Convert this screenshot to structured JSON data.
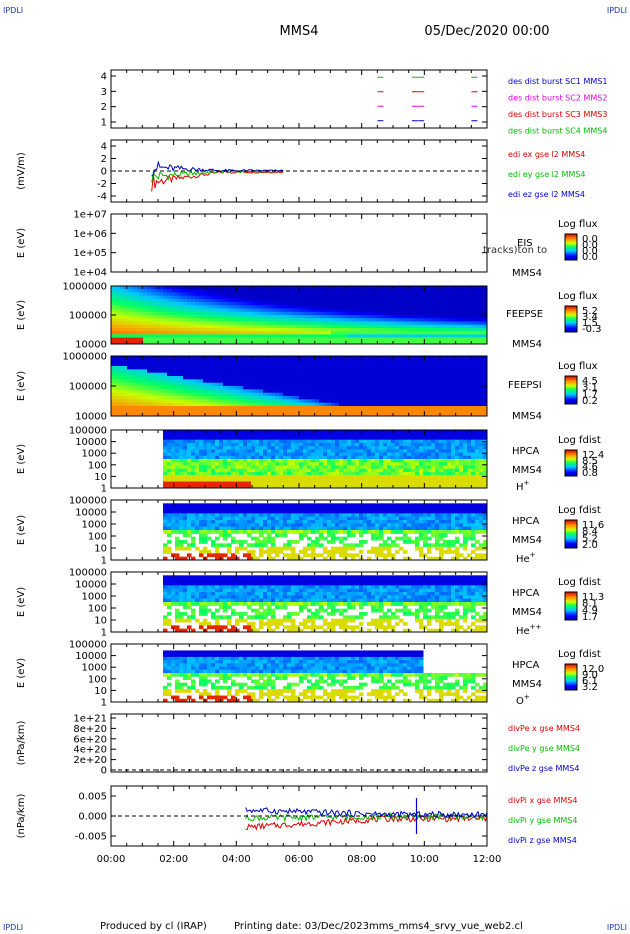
{
  "header": {
    "corner_label": "IPDLI",
    "spacecraft": "MMS4",
    "datetime": "05/Dec/2020 00:00"
  },
  "footer": {
    "produced_by": "Produced by cl (IRAP)",
    "printing_date": "Printing date: 03/Dec/2023",
    "script_name": "mms_mms4_srvy_vue_web2.cl"
  },
  "colors": {
    "red": "#dd0000",
    "green": "#00bb00",
    "blue": "#0000cc",
    "magenta": "#dd00dd",
    "axis": "#000000"
  },
  "chart_data": {
    "type": "multi-panel time series and spectrograms",
    "x_ticks": [
      "00:00",
      "02:00",
      "04:00",
      "06:00",
      "08:00",
      "10:00",
      "12:00"
    ],
    "x_range_hours": [
      0,
      12
    ],
    "panels": [
      {
        "id": "burst",
        "type": "line",
        "ylabel": "",
        "yticks": [
          "4",
          "3",
          "2",
          "1"
        ],
        "ylim": [
          0.5,
          4.5
        ],
        "legend": [
          {
            "text": "des dist burst SC1 MMS1",
            "color": "blue"
          },
          {
            "text": "des dist burst SC2 MMS2",
            "color": "magenta"
          },
          {
            "text": "des dist burst SC3 MMS3",
            "color": "red"
          },
          {
            "text": "des dist burst SC4 MMS4",
            "color": "green"
          }
        ],
        "marks_hours": [
          8.6,
          9.7,
          9.9,
          11.6
        ]
      },
      {
        "id": "edi",
        "type": "line",
        "ylabel": "(mV/m)",
        "yticks": [
          "4",
          "2",
          "0",
          "-2",
          "-4"
        ],
        "ylim": [
          -5,
          5
        ],
        "dashed_zero": true,
        "legend": [
          {
            "text": "edi ex gse l2 MMS4",
            "color": "red"
          },
          {
            "text": "edi ey gse l2 MMS4",
            "color": "green"
          },
          {
            "text": "edi ez gse l2 MMS4",
            "color": "blue"
          }
        ]
      },
      {
        "id": "eis",
        "type": "heatmap",
        "ylabel": "E (eV)",
        "yticks": [
          "1e+07",
          "1e+06",
          "1e+05",
          "1e+04"
        ],
        "ylim_log": [
          4,
          7
        ],
        "instrument": "EIS",
        "clipped_label": "tracks)ton to",
        "species": "MMS4",
        "cbar_title": "Log flux",
        "cbar_ticks": [
          "0.0",
          "0.0",
          "0.0",
          "0.0"
        ],
        "empty": true
      },
      {
        "id": "feepse",
        "type": "heatmap",
        "ylabel": "E (eV)",
        "yticks": [
          "1000000",
          "100000",
          "10000"
        ],
        "ylim_log": [
          4,
          6
        ],
        "instrument": "FEEPSE",
        "species": "MMS4",
        "cbar_title": "Log flux",
        "cbar_ticks": [
          "5.2",
          "3.4",
          "1.5",
          "-0.3"
        ]
      },
      {
        "id": "feepsi",
        "type": "heatmap",
        "ylabel": "E (eV)",
        "yticks": [
          "1000000",
          "100000",
          "10000"
        ],
        "ylim_log": [
          4,
          6
        ],
        "instrument": "FEEPSI",
        "species": "MMS4",
        "cbar_title": "Log flux",
        "cbar_ticks": [
          "4.5",
          "3.1",
          "1.7",
          "0.2"
        ]
      },
      {
        "id": "hpca_h",
        "type": "heatmap",
        "ylabel": "E (eV)",
        "yticks": [
          "100000",
          "10000",
          "1000",
          "100",
          "10",
          "1"
        ],
        "ylim_log": [
          0,
          5
        ],
        "instrument": "HPCA",
        "species": "MMS4",
        "ion": "H",
        "charge": "+",
        "cbar_title": "Log fdist",
        "cbar_ticks": [
          "12.4",
          "8.5",
          "4.6",
          "0.8"
        ]
      },
      {
        "id": "hpca_he",
        "type": "heatmap",
        "ylabel": "E (eV)",
        "yticks": [
          "100000",
          "10000",
          "1000",
          "100",
          "10",
          "1"
        ],
        "ylim_log": [
          0,
          5
        ],
        "instrument": "HPCA",
        "species": "MMS4",
        "ion": "He",
        "charge": "+",
        "cbar_title": "Log fdist",
        "cbar_ticks": [
          "11.6",
          "8.4",
          "5.2",
          "2.0"
        ]
      },
      {
        "id": "hpca_hepp",
        "type": "heatmap",
        "ylabel": "E (eV)",
        "yticks": [
          "100000",
          "10000",
          "1000",
          "100",
          "10",
          "1"
        ],
        "ylim_log": [
          0,
          5
        ],
        "instrument": "HPCA",
        "species": "MMS4",
        "ion": "He",
        "charge": "++",
        "cbar_title": "Log fdist",
        "cbar_ticks": [
          "11.3",
          "8.1",
          "4.9",
          "1.7"
        ]
      },
      {
        "id": "hpca_o",
        "type": "heatmap",
        "ylabel": "E (eV)",
        "yticks": [
          "100000",
          "10000",
          "1000",
          "100",
          "10",
          "1"
        ],
        "ylim_log": [
          0,
          5
        ],
        "instrument": "HPCA",
        "species": "MMS4",
        "ion": "O",
        "charge": "+",
        "cbar_title": "Log fdist",
        "cbar_ticks": [
          "12.0",
          "9.0",
          "6.1",
          "3.2"
        ]
      },
      {
        "id": "divpe",
        "type": "line",
        "ylabel": "(nPa/km)",
        "yticks": [
          "1e+21",
          "8e+20",
          "6e+20",
          "4e+20",
          "2e+20",
          "0"
        ],
        "ylim": [
          0,
          1e+21
        ],
        "dashed_zero": true,
        "legend": [
          {
            "text": "divPe x gse MMS4",
            "color": "red"
          },
          {
            "text": "divPe y gse MMS4",
            "color": "green"
          },
          {
            "text": "divPe z gse MMS4",
            "color": "blue"
          }
        ]
      },
      {
        "id": "divpi",
        "type": "line",
        "ylabel": "(nPa/km)",
        "yticks": [
          "0.005",
          "0.000",
          "-0.005"
        ],
        "yvals": [
          0.005,
          0.0,
          -0.005
        ],
        "ylim": [
          -0.0075,
          0.0075
        ],
        "dashed_zero": true,
        "legend": [
          {
            "text": "divPi x gse MMS4",
            "color": "red"
          },
          {
            "text": "divPi y gse MMS4",
            "color": "green"
          },
          {
            "text": "divPi z gse MMS4",
            "color": "blue"
          }
        ]
      }
    ]
  }
}
